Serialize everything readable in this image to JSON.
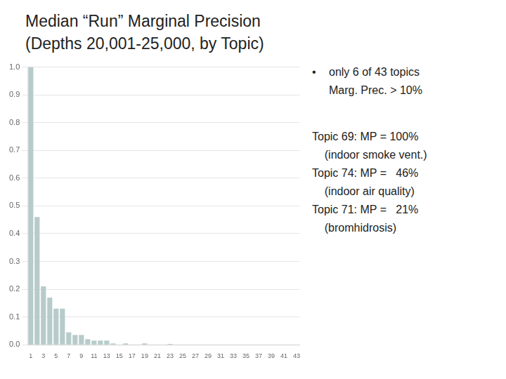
{
  "chart_data": {
    "type": "bar",
    "title": "Median “Run” Marginal Precision",
    "subtitle": "(Depths 20,001-25,000, by Topic)",
    "categories": [
      "1",
      null,
      "3",
      null,
      "5",
      null,
      "7",
      null,
      "9",
      null,
      "11",
      null,
      "13",
      null,
      "15",
      null,
      "17",
      null,
      "19",
      null,
      "21",
      null,
      "23",
      null,
      "25",
      null,
      "27",
      null,
      "29",
      null,
      "31",
      null,
      "33",
      null,
      "35",
      null,
      "37",
      null,
      "39",
      null,
      "41",
      null,
      "43"
    ],
    "values": [
      1.0,
      0.46,
      0.21,
      0.17,
      0.13,
      0.13,
      0.045,
      0.035,
      0.035,
      0.02,
      0.015,
      0.015,
      0.015,
      0.005,
      0.0,
      0.005,
      0.0,
      0.0,
      0.005,
      0.0,
      0.0,
      0.0,
      0.003,
      0.0,
      0.0,
      0.0,
      0.0,
      0.0,
      0.0,
      0.0,
      0.0,
      0.0,
      0.0,
      0.0,
      0.0,
      0.0,
      0.0,
      0.0,
      0.0,
      0.0,
      0.0,
      0.0,
      0.0
    ],
    "color": "#b8cbcb",
    "ylim": [
      0,
      1.0
    ],
    "yticks": [
      {
        "value": 0,
        "label": "0.0"
      },
      0.1,
      0.2,
      0.3,
      0.4,
      0.5,
      0.6,
      0.7,
      0.8,
      0.9,
      {
        "value": 1,
        "label": "1.0"
      }
    ],
    "grid": true,
    "annotations": [
      "•",
      "only 6 of 43 topics",
      "Marg. Prec. > 10%",
      "Topic 69: MP = 100%",
      "    (indoor smoke vent.)",
      "Topic 74: MP =   46%",
      "    (indoor air quality)",
      "Topic 71: MP =   21%",
      "    (bromhidrosis)"
    ]
  }
}
